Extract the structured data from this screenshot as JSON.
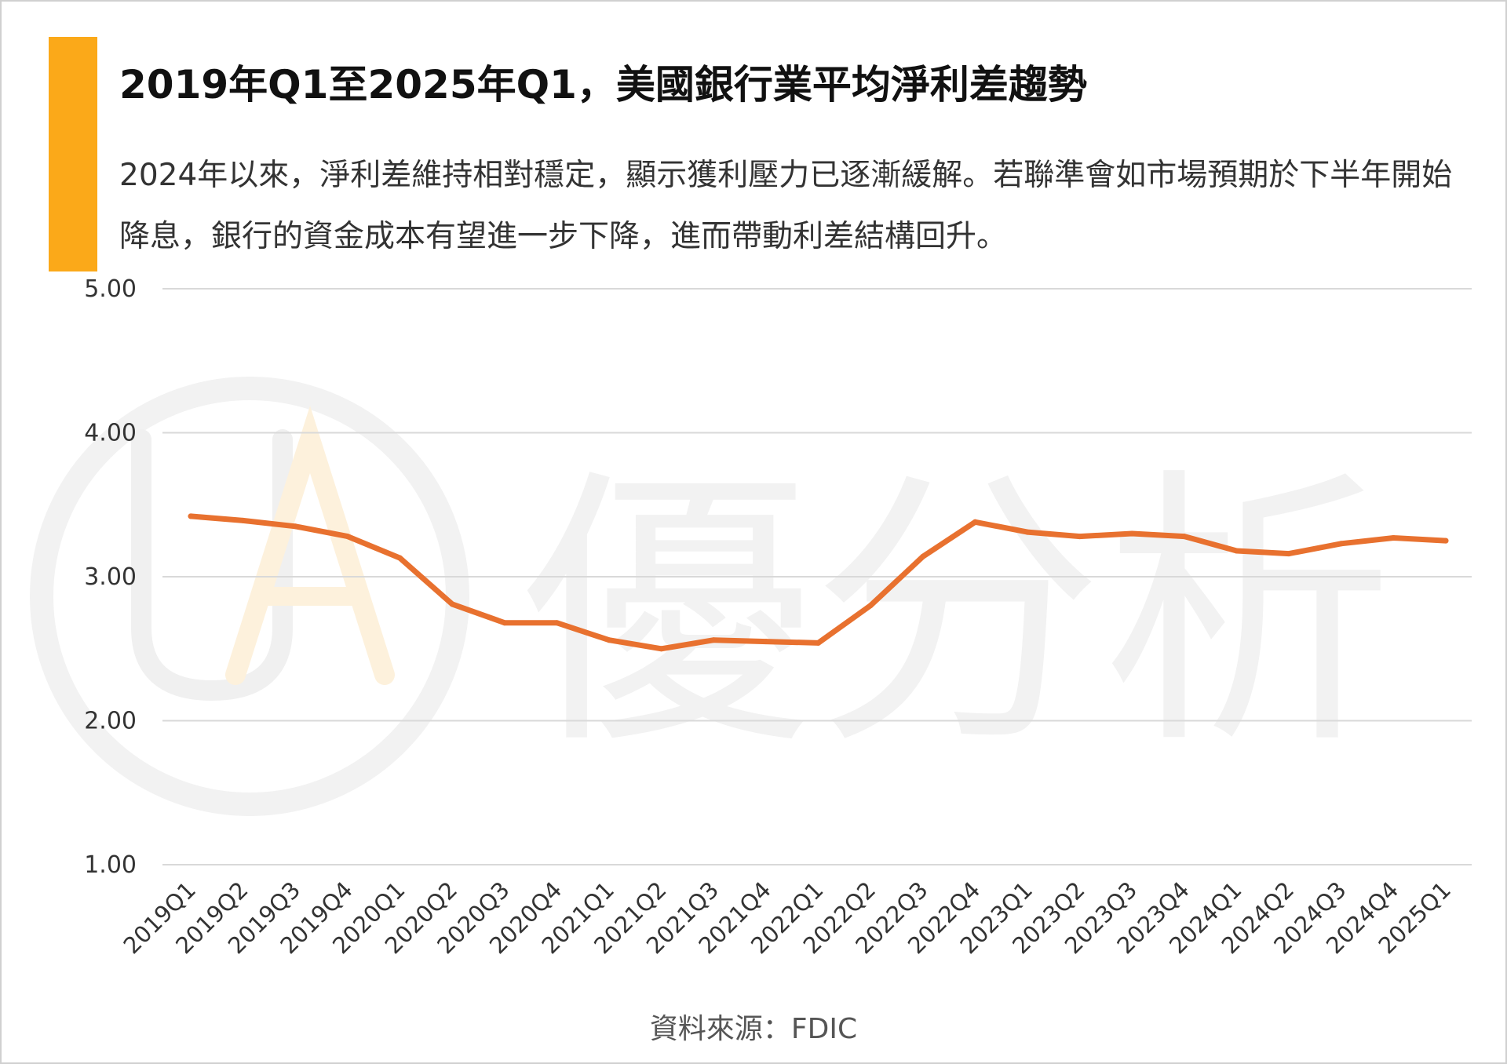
{
  "header": {
    "title": "2019年Q1至2025年Q1，美國銀行業平均淨利差趨勢",
    "subtitle": "2024年以來，淨利差維持相對穩定，顯示獲利壓力已逐漸緩解。若聯準會如市場預期於下半年開始降息，銀行的資金成本有望進一步下降，進而帶動利差結構回升。"
  },
  "watermark": {
    "text": "優分析",
    "logo_icon": "ufa-logo-icon"
  },
  "source": "資料來源：FDIC",
  "colors": {
    "accent": "#FBA919",
    "line": "#E8712F",
    "grid": "#d9d9d9",
    "watermark": "#f1f1f1"
  },
  "chart_data": {
    "type": "line",
    "title": "2019年Q1至2025年Q1，美國銀行業平均淨利差趨勢",
    "xlabel": "",
    "ylabel": "",
    "ylim": [
      1.0,
      5.0
    ],
    "yticks": [
      "1.00",
      "2.00",
      "3.00",
      "4.00",
      "5.00"
    ],
    "grid": true,
    "legend": "none",
    "categories": [
      "2019Q1",
      "2019Q2",
      "2019Q3",
      "2019Q4",
      "2020Q1",
      "2020Q2",
      "2020Q3",
      "2020Q4",
      "2021Q1",
      "2021Q2",
      "2021Q3",
      "2021Q4",
      "2022Q1",
      "2022Q2",
      "2022Q3",
      "2022Q4",
      "2023Q1",
      "2023Q2",
      "2023Q3",
      "2023Q4",
      "2024Q1",
      "2024Q2",
      "2024Q3",
      "2024Q4",
      "2025Q1"
    ],
    "series": [
      {
        "values": [
          3.42,
          3.39,
          3.35,
          3.28,
          3.13,
          2.81,
          2.68,
          2.68,
          2.56,
          2.5,
          2.56,
          2.55,
          2.54,
          2.8,
          3.14,
          3.38,
          3.31,
          3.28,
          3.3,
          3.28,
          3.18,
          3.16,
          3.23,
          3.27,
          3.25
        ]
      }
    ]
  }
}
